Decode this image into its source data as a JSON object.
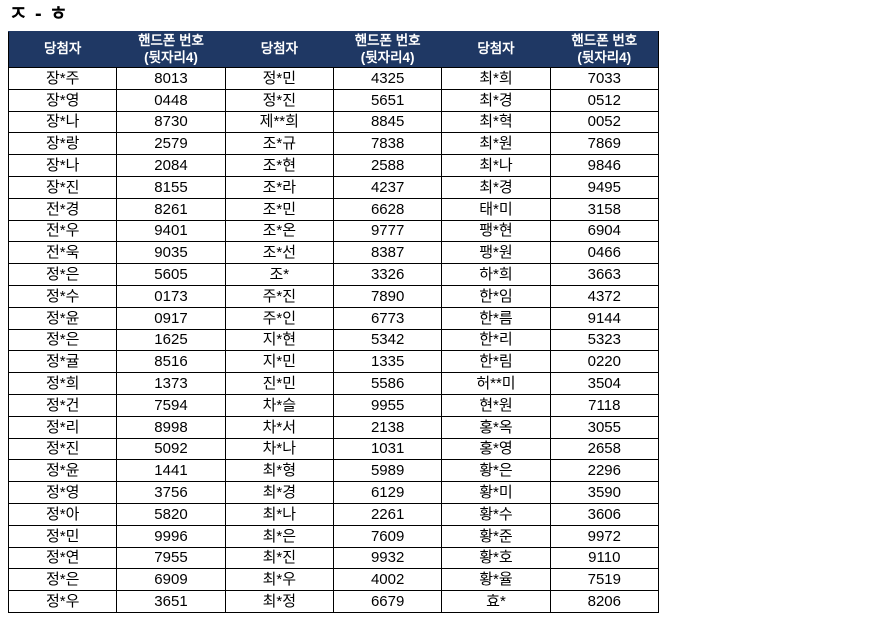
{
  "page_title": "ㅈ - ㅎ",
  "table": {
    "header": {
      "winner_label": "당첨자",
      "phone_label_line1": "핸드폰 번호",
      "phone_label_line2": "(뒷자리4)"
    },
    "colors": {
      "header_bg": "#1F3864",
      "header_text": "#FFFFFF",
      "border": "#000000",
      "cell_text": "#000000"
    },
    "groups": [
      {
        "rows": [
          [
            "장*주",
            "8013"
          ],
          [
            "장*영",
            "0448"
          ],
          [
            "장*나",
            "8730"
          ],
          [
            "장*랑",
            "2579"
          ],
          [
            "장*나",
            "2084"
          ],
          [
            "장*진",
            "8155"
          ],
          [
            "전*경",
            "8261"
          ],
          [
            "전*우",
            "9401"
          ],
          [
            "전*욱",
            "9035"
          ],
          [
            "정*은",
            "5605"
          ],
          [
            "정*수",
            "0173"
          ],
          [
            "정*윤",
            "0917"
          ],
          [
            "정*은",
            "1625"
          ],
          [
            "정*귤",
            "8516"
          ],
          [
            "정*희",
            "1373"
          ],
          [
            "정*건",
            "7594"
          ],
          [
            "정*리",
            "8998"
          ],
          [
            "정*진",
            "5092"
          ],
          [
            "정*윤",
            "1441"
          ],
          [
            "정*영",
            "3756"
          ],
          [
            "정*아",
            "5820"
          ],
          [
            "정*민",
            "9996"
          ],
          [
            "정*연",
            "7955"
          ],
          [
            "정*은",
            "6909"
          ],
          [
            "정*우",
            "3651"
          ]
        ]
      },
      {
        "rows": [
          [
            "정*민",
            "4325"
          ],
          [
            "정*진",
            "5651"
          ],
          [
            "제**희",
            "8845"
          ],
          [
            "조*규",
            "7838"
          ],
          [
            "조*현",
            "2588"
          ],
          [
            "조*라",
            "4237"
          ],
          [
            "조*민",
            "6628"
          ],
          [
            "조*온",
            "9777"
          ],
          [
            "조*선",
            "8387"
          ],
          [
            "조*",
            "3326"
          ],
          [
            "주*진",
            "7890"
          ],
          [
            "주*인",
            "6773"
          ],
          [
            "지*현",
            "5342"
          ],
          [
            "지*민",
            "1335"
          ],
          [
            "진*민",
            "5586"
          ],
          [
            "차*슬",
            "9955"
          ],
          [
            "차*서",
            "2138"
          ],
          [
            "차*나",
            "1031"
          ],
          [
            "최*형",
            "5989"
          ],
          [
            "최*경",
            "6129"
          ],
          [
            "최*나",
            "2261"
          ],
          [
            "최*은",
            "7609"
          ],
          [
            "최*진",
            "9932"
          ],
          [
            "최*우",
            "4002"
          ],
          [
            "최*정",
            "6679"
          ]
        ]
      },
      {
        "rows": [
          [
            "최*희",
            "7033"
          ],
          [
            "최*경",
            "0512"
          ],
          [
            "최*혁",
            "0052"
          ],
          [
            "최*원",
            "7869"
          ],
          [
            "최*나",
            "9846"
          ],
          [
            "최*경",
            "9495"
          ],
          [
            "태*미",
            "3158"
          ],
          [
            "팽*현",
            "6904"
          ],
          [
            "팽*원",
            "0466"
          ],
          [
            "하*희",
            "3663"
          ],
          [
            "한*임",
            "4372"
          ],
          [
            "한*름",
            "9144"
          ],
          [
            "한*리",
            "5323"
          ],
          [
            "한*림",
            "0220"
          ],
          [
            "허**미",
            "3504"
          ],
          [
            "현*원",
            "7118"
          ],
          [
            "홍*옥",
            "3055"
          ],
          [
            "홍*영",
            "2658"
          ],
          [
            "황*은",
            "2296"
          ],
          [
            "황*미",
            "3590"
          ],
          [
            "황*수",
            "3606"
          ],
          [
            "황*준",
            "9972"
          ],
          [
            "황*호",
            "9110"
          ],
          [
            "황*율",
            "7519"
          ],
          [
            "효*",
            "8206"
          ]
        ]
      }
    ]
  }
}
